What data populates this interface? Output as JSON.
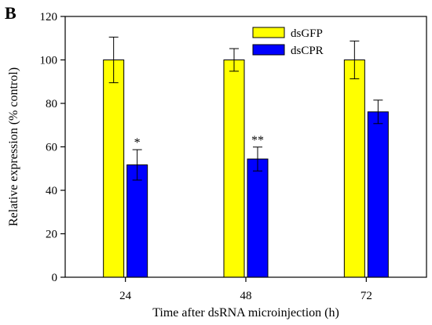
{
  "panel_label": "B",
  "colors": {
    "dsGFP": "#ffff00",
    "dsCPR": "#0000ff",
    "axis": "#000000"
  },
  "chart_data": {
    "type": "bar",
    "title": "",
    "xlabel": "Time after dsRNA microinjection (h)",
    "ylabel": "Relative expression (% control)",
    "ylim": [
      0,
      120
    ],
    "yticks": [
      "0",
      "20",
      "40",
      "60",
      "80",
      "100",
      "120"
    ],
    "categories": [
      "24",
      "48",
      "72"
    ],
    "legend_position": "top-right",
    "grid": false,
    "series": [
      {
        "name": "dsGFP",
        "values": [
          100,
          100,
          100
        ],
        "errors": [
          10.5,
          5.2,
          8.7
        ]
      },
      {
        "name": "dsCPR",
        "values": [
          51.7,
          54.4,
          76.1
        ],
        "errors": [
          7.0,
          5.5,
          5.4
        ]
      }
    ],
    "annotations": [
      {
        "category": "24",
        "series": "dsCPR",
        "text": "*"
      },
      {
        "category": "48",
        "series": "dsCPR",
        "text": "**"
      }
    ]
  }
}
